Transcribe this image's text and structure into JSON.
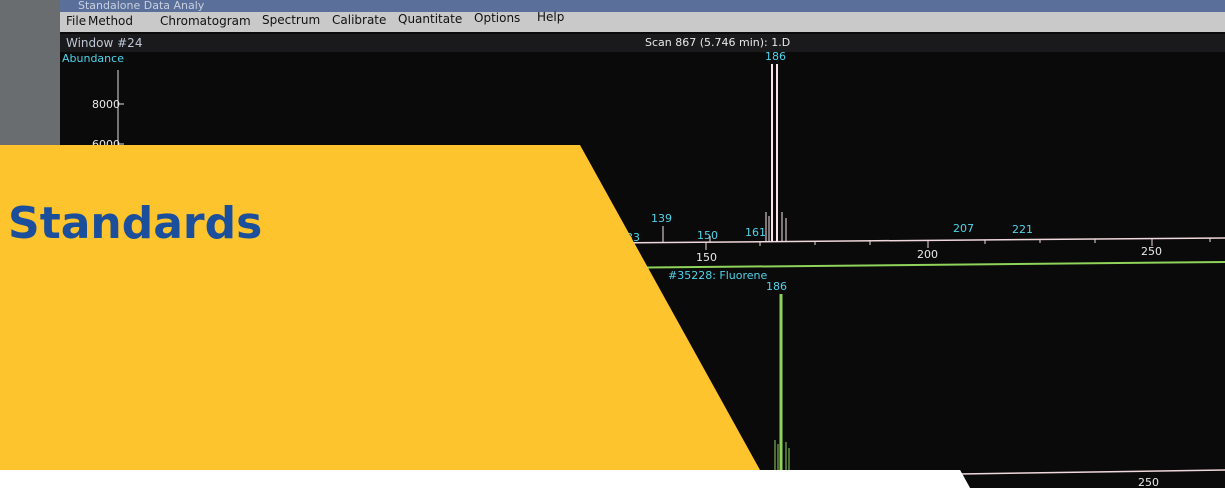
{
  "window": {
    "title": "Standalone Data Analy"
  },
  "menu": [
    "File",
    "Method",
    "Chromatogram",
    "Spectrum",
    "Calibrate",
    "Quantitate",
    "Options",
    "Help"
  ],
  "subwindow": "Window #24",
  "spectrum_top": {
    "title": "Scan 867 (5.746 min): 1.D",
    "y_label": "Abundance",
    "y_ticks": [
      "8000",
      "6000"
    ],
    "peak_labels": [
      "186",
      "139",
      "150",
      "161",
      "207",
      "221",
      "33"
    ],
    "x_ticks": [
      "150",
      "200",
      "250"
    ]
  },
  "spectrum_bottom": {
    "title": "#35228: Fluorene",
    "peak_label": "186",
    "x_ticks": [
      "250"
    ]
  },
  "banner": {
    "heading": "Standards"
  }
}
